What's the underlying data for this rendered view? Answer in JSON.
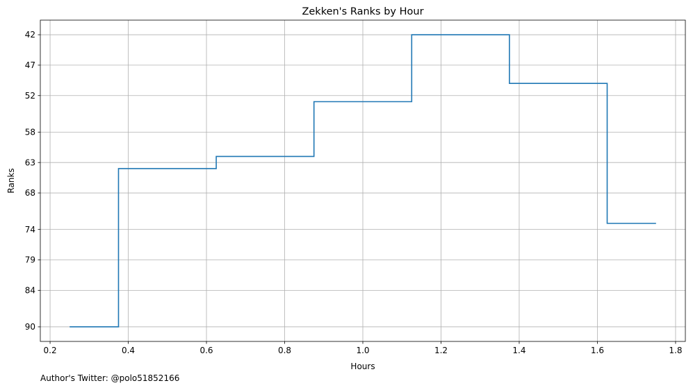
{
  "chart_data": {
    "type": "line",
    "step": "post",
    "title": "Zekken's Ranks by Hour",
    "xlabel": "Hours",
    "ylabel": "Ranks",
    "xlim": [
      0.175,
      1.825
    ],
    "ylim": [
      92.4,
      39.6
    ],
    "y_inverted": true,
    "grid": true,
    "xticks": [
      0.2,
      0.4,
      0.6,
      0.8,
      1.0,
      1.2,
      1.4,
      1.6,
      1.8
    ],
    "xtick_labels": [
      "0.2",
      "0.4",
      "0.6",
      "0.8",
      "1.0",
      "1.2",
      "1.4",
      "1.6",
      "1.8"
    ],
    "yticks": [
      42,
      47,
      52,
      58,
      63,
      68,
      74,
      79,
      84,
      90
    ],
    "ytick_labels": [
      "42",
      "47",
      "52",
      "58",
      "63",
      "68",
      "74",
      "79",
      "84",
      "90"
    ],
    "series": [
      {
        "color": "#1f77b4",
        "points": [
          [
            0.25,
            90
          ],
          [
            0.375,
            64
          ],
          [
            0.625,
            62
          ],
          [
            0.875,
            53
          ],
          [
            1.125,
            42
          ],
          [
            1.375,
            50
          ],
          [
            1.625,
            73
          ],
          [
            1.75,
            73
          ]
        ]
      }
    ]
  },
  "footer": {
    "credit": "Author's Twitter: @polo51852166"
  }
}
